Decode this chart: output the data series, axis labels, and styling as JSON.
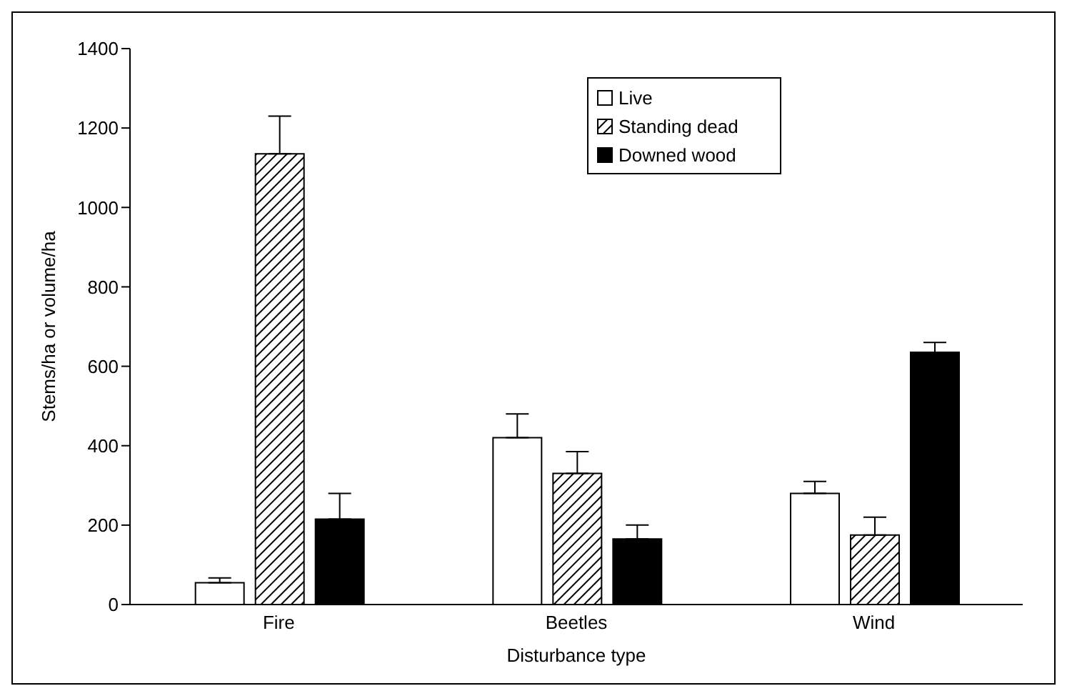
{
  "chart_data": {
    "type": "bar",
    "xlabel": "Disturbance type",
    "ylabel": "Stems/ha or volume/ha",
    "categories": [
      "Fire",
      "Beetles",
      "Wind"
    ],
    "series": [
      {
        "name": "Live",
        "color": "#ffffff",
        "values": [
          55,
          420,
          280
        ],
        "errors": [
          12,
          60,
          30
        ]
      },
      {
        "name": "Standing dead",
        "color": "#000000",
        "values": [
          1135,
          330,
          175
        ],
        "errors": [
          95,
          55,
          45
        ]
      },
      {
        "name": "Downed wood",
        "color": "#000000",
        "values": [
          215,
          165,
          635
        ],
        "errors": [
          65,
          35,
          25
        ]
      }
    ],
    "ylim": [
      0,
      1400
    ],
    "yticks": [
      0,
      200,
      400,
      600,
      800,
      1000,
      1200,
      1400
    ],
    "legend": "top"
  }
}
